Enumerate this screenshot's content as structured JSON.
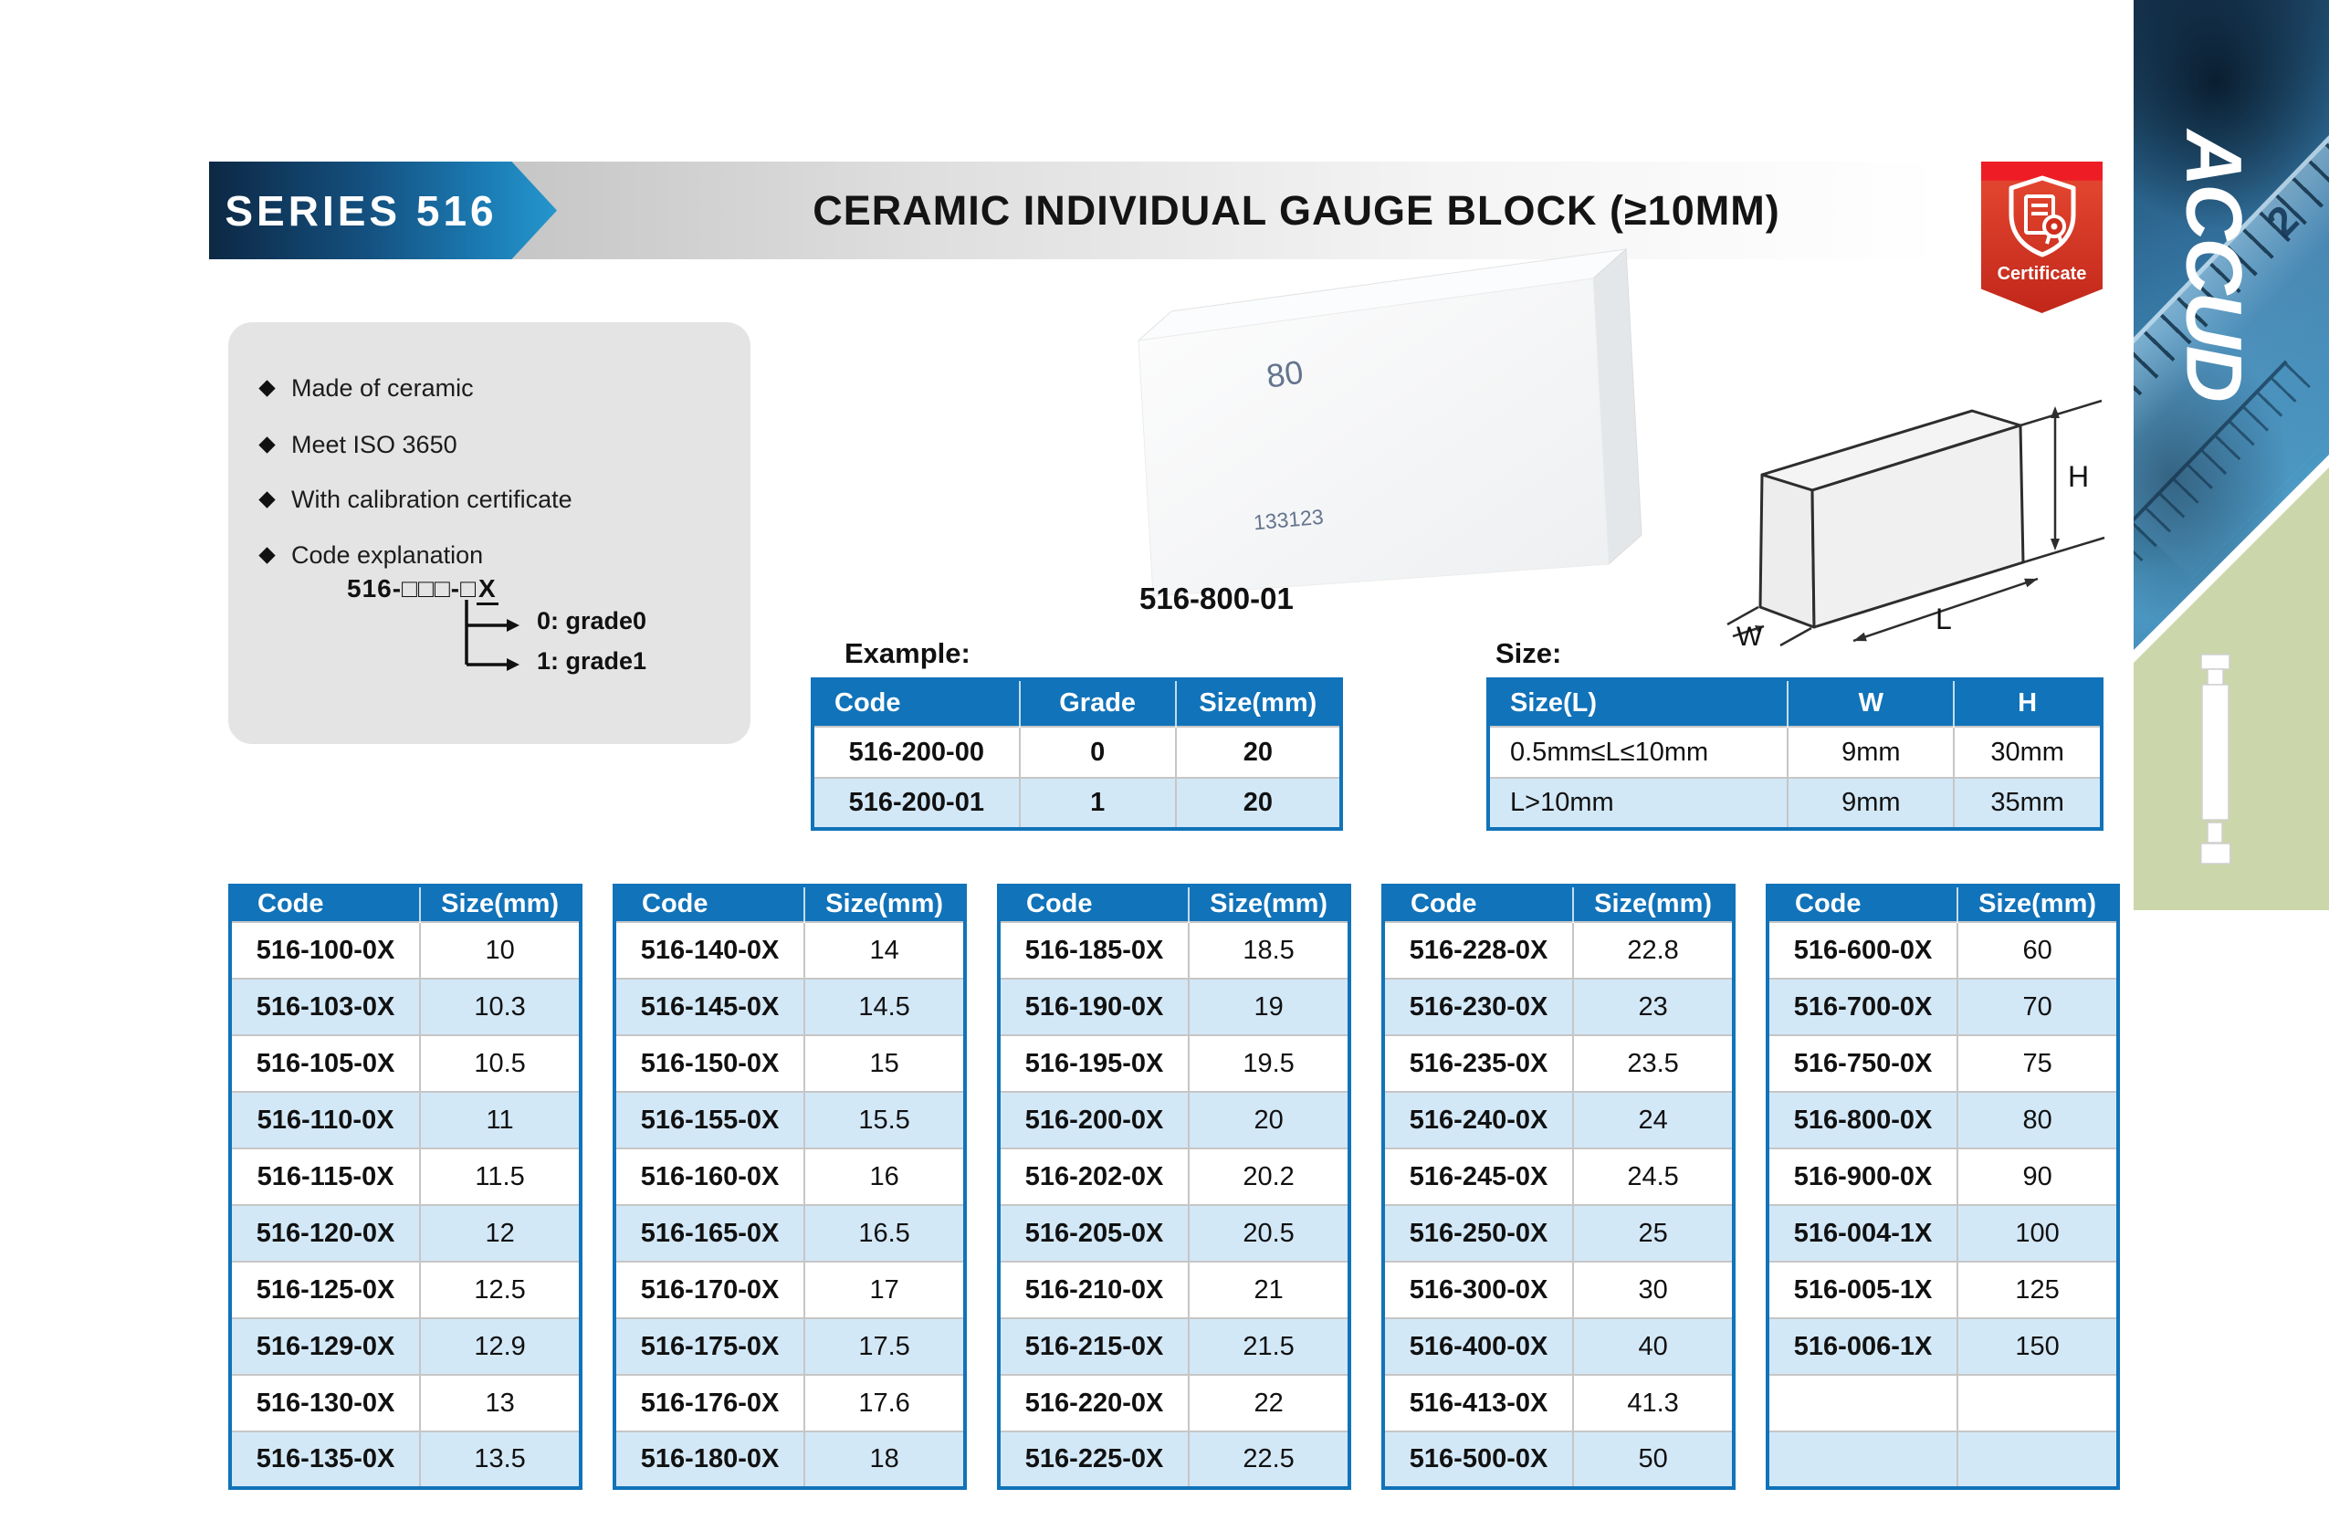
{
  "header": {
    "series": "SERIES 516",
    "title": "CERAMIC INDIVIDUAL GAUGE BLOCK (≥10MM)",
    "certificate_label": "Certificate"
  },
  "brand": {
    "name": "ACCUD",
    "ruler_numeral": "2"
  },
  "features": {
    "items": [
      "Made of ceramic",
      "Meet ISO 3650",
      "With calibration certificate",
      "Code explanation"
    ],
    "code_pattern_prefix": "516-□□□-□",
    "code_pattern_x": "X",
    "grades": [
      "0: grade0",
      "1: grade1"
    ]
  },
  "product_photo": {
    "marking": "80",
    "serial": "133123",
    "caption": "516-800-01"
  },
  "diagram_labels": {
    "w": "W",
    "l": "L",
    "h": "H"
  },
  "example_table": {
    "heading": "Example:",
    "columns": [
      "Code",
      "Grade",
      "Size(mm)"
    ],
    "rows": [
      [
        "516-200-00",
        "0",
        "20"
      ],
      [
        "516-200-01",
        "1",
        "20"
      ]
    ]
  },
  "size_table": {
    "heading": "Size:",
    "columns": [
      "Size(L)",
      "W",
      "H"
    ],
    "rows": [
      [
        "0.5mm≤L≤10mm",
        "9mm",
        "30mm"
      ],
      [
        "L>10mm",
        "9mm",
        "35mm"
      ]
    ]
  },
  "code_tables": {
    "columns": [
      "Code",
      "Size(mm)"
    ],
    "tables": [
      {
        "rows": [
          [
            "516-100-0X",
            "10"
          ],
          [
            "516-103-0X",
            "10.3"
          ],
          [
            "516-105-0X",
            "10.5"
          ],
          [
            "516-110-0X",
            "11"
          ],
          [
            "516-115-0X",
            "11.5"
          ],
          [
            "516-120-0X",
            "12"
          ],
          [
            "516-125-0X",
            "12.5"
          ],
          [
            "516-129-0X",
            "12.9"
          ],
          [
            "516-130-0X",
            "13"
          ],
          [
            "516-135-0X",
            "13.5"
          ]
        ]
      },
      {
        "rows": [
          [
            "516-140-0X",
            "14"
          ],
          [
            "516-145-0X",
            "14.5"
          ],
          [
            "516-150-0X",
            "15"
          ],
          [
            "516-155-0X",
            "15.5"
          ],
          [
            "516-160-0X",
            "16"
          ],
          [
            "516-165-0X",
            "16.5"
          ],
          [
            "516-170-0X",
            "17"
          ],
          [
            "516-175-0X",
            "17.5"
          ],
          [
            "516-176-0X",
            "17.6"
          ],
          [
            "516-180-0X",
            "18"
          ]
        ]
      },
      {
        "rows": [
          [
            "516-185-0X",
            "18.5"
          ],
          [
            "516-190-0X",
            "19"
          ],
          [
            "516-195-0X",
            "19.5"
          ],
          [
            "516-200-0X",
            "20"
          ],
          [
            "516-202-0X",
            "20.2"
          ],
          [
            "516-205-0X",
            "20.5"
          ],
          [
            "516-210-0X",
            "21"
          ],
          [
            "516-215-0X",
            "21.5"
          ],
          [
            "516-220-0X",
            "22"
          ],
          [
            "516-225-0X",
            "22.5"
          ]
        ]
      },
      {
        "rows": [
          [
            "516-228-0X",
            "22.8"
          ],
          [
            "516-230-0X",
            "23"
          ],
          [
            "516-235-0X",
            "23.5"
          ],
          [
            "516-240-0X",
            "24"
          ],
          [
            "516-245-0X",
            "24.5"
          ],
          [
            "516-250-0X",
            "25"
          ],
          [
            "516-300-0X",
            "30"
          ],
          [
            "516-400-0X",
            "40"
          ],
          [
            "516-413-0X",
            "41.3"
          ],
          [
            "516-500-0X",
            "50"
          ]
        ]
      },
      {
        "rows": [
          [
            "516-600-0X",
            "60"
          ],
          [
            "516-700-0X",
            "70"
          ],
          [
            "516-750-0X",
            "75"
          ],
          [
            "516-800-0X",
            "80"
          ],
          [
            "516-900-0X",
            "90"
          ],
          [
            "516-004-1X",
            "100"
          ],
          [
            "516-005-1X",
            "125"
          ],
          [
            "516-006-1X",
            "150"
          ],
          [
            "",
            ""
          ],
          [
            "",
            ""
          ]
        ]
      }
    ]
  },
  "colors": {
    "accent": "#1173b9",
    "stripe": "#d3e8f7",
    "badge-red": "#d6301f",
    "panel-gray": "#e4e4e4",
    "strip-green": "#ccd6ab"
  }
}
